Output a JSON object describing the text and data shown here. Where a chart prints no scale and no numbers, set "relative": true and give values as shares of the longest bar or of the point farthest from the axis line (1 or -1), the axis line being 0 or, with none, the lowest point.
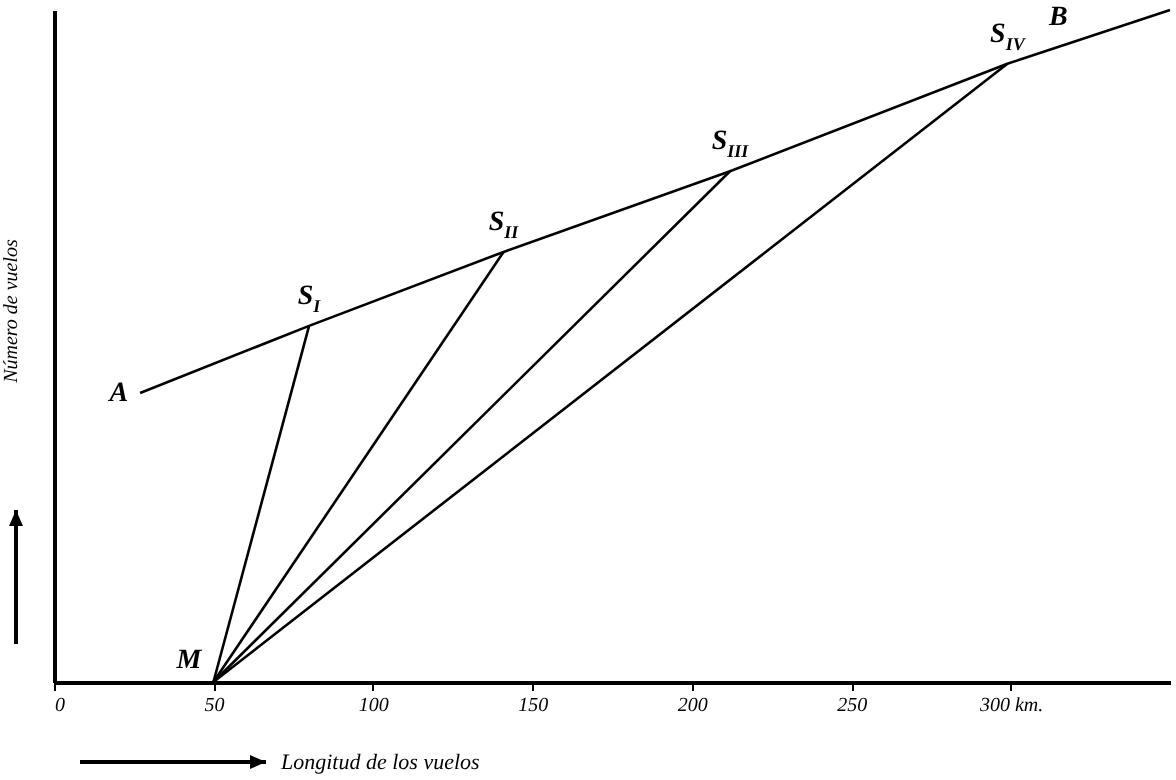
{
  "chart_data": {
    "type": "line",
    "relative": true,
    "xlabel": "Longitud de los vuelos",
    "ylabel": "Número de vuelos",
    "xlim": [
      0,
      350
    ],
    "xticks": [
      0,
      50,
      100,
      150,
      200,
      250,
      {
        "value": 300,
        "label": "300 km."
      }
    ],
    "series": [
      {
        "color": "#000000",
        "x": [
          27,
          80,
          141,
          212,
          299,
          350
        ],
        "values": [
          0.43,
          0.53,
          0.64,
          0.76,
          0.92,
          1.0
        ]
      },
      {
        "color": "#000000",
        "x": [
          50,
          80
        ],
        "values": [
          0,
          0.53
        ]
      },
      {
        "color": "#000000",
        "x": [
          50,
          141
        ],
        "values": [
          0,
          0.64
        ]
      },
      {
        "color": "#000000",
        "x": [
          50,
          212
        ],
        "values": [
          0,
          0.76
        ]
      },
      {
        "color": "#000000",
        "x": [
          50,
          299
        ],
        "values": [
          0,
          0.92
        ]
      }
    ],
    "annotations": [
      {
        "text": "A",
        "x": 27,
        "y": 0.43
      },
      {
        "text": "B",
        "x": 315,
        "y": 0.945
      },
      {
        "text": "M",
        "x": 50,
        "y": 0
      },
      {
        "text": "S$_{I}$",
        "x": 80,
        "y": 0.53
      },
      {
        "text": "S$_{II}$",
        "x": 141,
        "y": 0.64
      },
      {
        "text": "S$_{III}$",
        "x": 212,
        "y": 0.76
      },
      {
        "text": "S$_{IV}$",
        "x": 299,
        "y": 0.92
      }
    ],
    "marker": "none",
    "line_style": "solid"
  }
}
